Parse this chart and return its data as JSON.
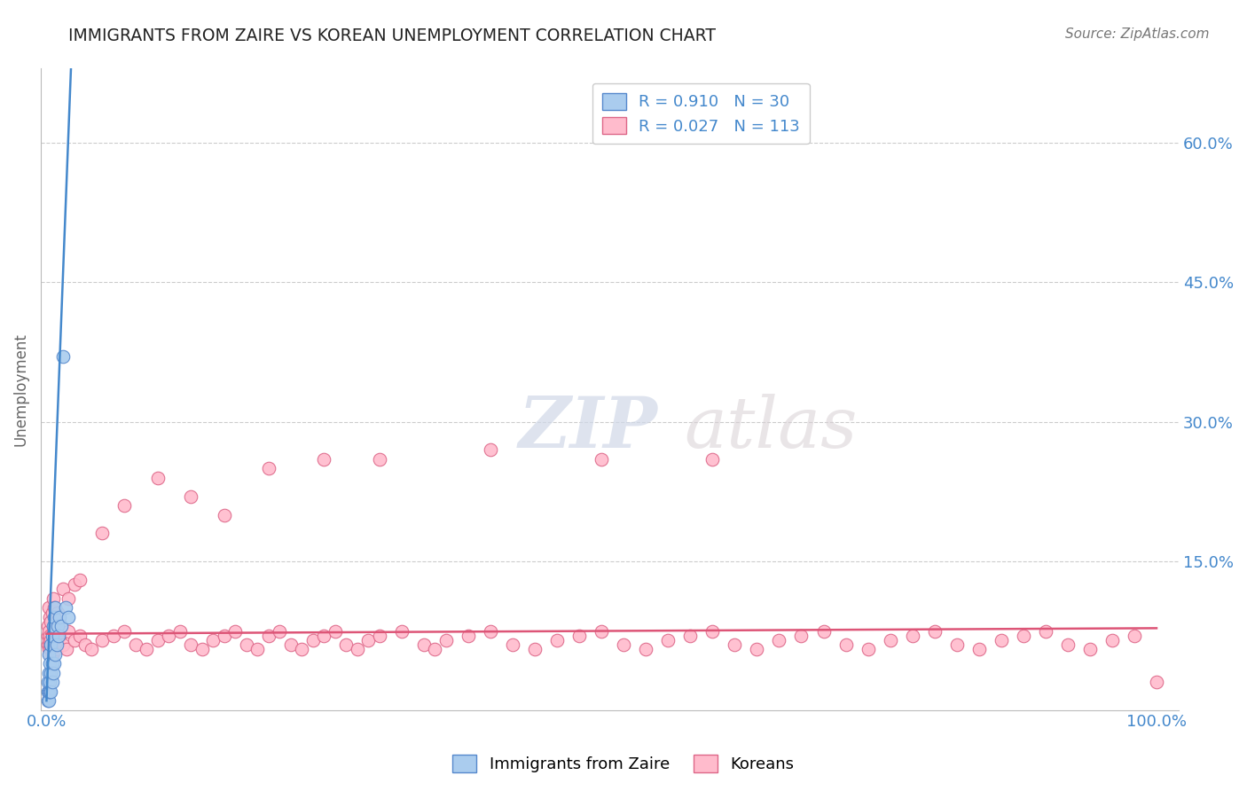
{
  "title": "IMMIGRANTS FROM ZAIRE VS KOREAN UNEMPLOYMENT CORRELATION CHART",
  "source": "Source: ZipAtlas.com",
  "watermark_zip": "ZIP",
  "watermark_atlas": "atlas",
  "xlabel": "",
  "ylabel": "Unemployment",
  "legend1_label": "Immigrants from Zaire",
  "legend2_label": "Koreans",
  "R1": 0.91,
  "N1": 30,
  "R2": 0.027,
  "N2": 113,
  "xlim": [
    -0.005,
    1.02
  ],
  "ylim": [
    -0.01,
    0.68
  ],
  "yticks": [
    0.0,
    0.15,
    0.3,
    0.45,
    0.6
  ],
  "xticks": [
    0.0,
    0.25,
    0.5,
    0.75,
    1.0
  ],
  "blue_color": "#aaccee",
  "blue_edge_color": "#5588cc",
  "pink_color": "#ffbbcc",
  "pink_edge_color": "#dd6688",
  "blue_line_color": "#4488cc",
  "pink_line_color": "#dd5577",
  "axis_tick_color": "#4488cc",
  "title_color": "#222222",
  "grid_color": "#cccccc",
  "blue_scatter_x": [
    0.001,
    0.001,
    0.001,
    0.002,
    0.002,
    0.002,
    0.002,
    0.003,
    0.003,
    0.003,
    0.004,
    0.004,
    0.004,
    0.005,
    0.005,
    0.005,
    0.006,
    0.006,
    0.007,
    0.007,
    0.008,
    0.008,
    0.009,
    0.01,
    0.011,
    0.012,
    0.013,
    0.015,
    0.017,
    0.02
  ],
  "blue_scatter_y": [
    0.0,
    0.01,
    0.02,
    0.0,
    0.01,
    0.03,
    0.05,
    0.01,
    0.02,
    0.04,
    0.01,
    0.03,
    0.06,
    0.02,
    0.04,
    0.07,
    0.03,
    0.08,
    0.04,
    0.09,
    0.05,
    0.1,
    0.06,
    0.08,
    0.07,
    0.09,
    0.08,
    0.37,
    0.1,
    0.09
  ],
  "blue_line_x0": 0.0,
  "blue_line_y0": 0.0,
  "blue_line_x1": 0.022,
  "blue_line_y1": 0.68,
  "pink_line_x0": 0.0,
  "pink_line_y0": 0.072,
  "pink_line_x1": 1.0,
  "pink_line_y1": 0.078,
  "pink_scatter_x": [
    0.001,
    0.001,
    0.001,
    0.002,
    0.002,
    0.002,
    0.003,
    0.003,
    0.003,
    0.004,
    0.004,
    0.005,
    0.005,
    0.006,
    0.006,
    0.007,
    0.008,
    0.009,
    0.01,
    0.012,
    0.015,
    0.018,
    0.02,
    0.025,
    0.03,
    0.035,
    0.04,
    0.05,
    0.06,
    0.07,
    0.08,
    0.09,
    0.1,
    0.11,
    0.12,
    0.13,
    0.14,
    0.15,
    0.16,
    0.17,
    0.18,
    0.19,
    0.2,
    0.21,
    0.22,
    0.23,
    0.24,
    0.25,
    0.26,
    0.27,
    0.28,
    0.29,
    0.3,
    0.32,
    0.34,
    0.35,
    0.36,
    0.38,
    0.4,
    0.42,
    0.44,
    0.46,
    0.48,
    0.5,
    0.52,
    0.54,
    0.56,
    0.58,
    0.6,
    0.62,
    0.64,
    0.66,
    0.68,
    0.7,
    0.72,
    0.74,
    0.76,
    0.78,
    0.8,
    0.82,
    0.84,
    0.86,
    0.88,
    0.9,
    0.92,
    0.94,
    0.96,
    0.98,
    1.0,
    0.002,
    0.003,
    0.004,
    0.005,
    0.006,
    0.007,
    0.008,
    0.009,
    0.01,
    0.015,
    0.02,
    0.025,
    0.03,
    0.05,
    0.07,
    0.1,
    0.13,
    0.16,
    0.2,
    0.25,
    0.3,
    0.4,
    0.5,
    0.6
  ],
  "pink_scatter_y": [
    0.06,
    0.07,
    0.08,
    0.055,
    0.065,
    0.075,
    0.05,
    0.06,
    0.07,
    0.055,
    0.065,
    0.05,
    0.06,
    0.065,
    0.075,
    0.07,
    0.06,
    0.055,
    0.065,
    0.07,
    0.06,
    0.055,
    0.075,
    0.065,
    0.07,
    0.06,
    0.055,
    0.065,
    0.07,
    0.075,
    0.06,
    0.055,
    0.065,
    0.07,
    0.075,
    0.06,
    0.055,
    0.065,
    0.07,
    0.075,
    0.06,
    0.055,
    0.07,
    0.075,
    0.06,
    0.055,
    0.065,
    0.07,
    0.075,
    0.06,
    0.055,
    0.065,
    0.07,
    0.075,
    0.06,
    0.055,
    0.065,
    0.07,
    0.075,
    0.06,
    0.055,
    0.065,
    0.07,
    0.075,
    0.06,
    0.055,
    0.065,
    0.07,
    0.075,
    0.06,
    0.055,
    0.065,
    0.07,
    0.075,
    0.06,
    0.055,
    0.065,
    0.07,
    0.075,
    0.06,
    0.055,
    0.065,
    0.07,
    0.075,
    0.06,
    0.055,
    0.065,
    0.07,
    0.02,
    0.1,
    0.09,
    0.085,
    0.095,
    0.11,
    0.1,
    0.09,
    0.085,
    0.095,
    0.12,
    0.11,
    0.125,
    0.13,
    0.18,
    0.21,
    0.24,
    0.22,
    0.2,
    0.25,
    0.26,
    0.26,
    0.27,
    0.26,
    0.26
  ]
}
